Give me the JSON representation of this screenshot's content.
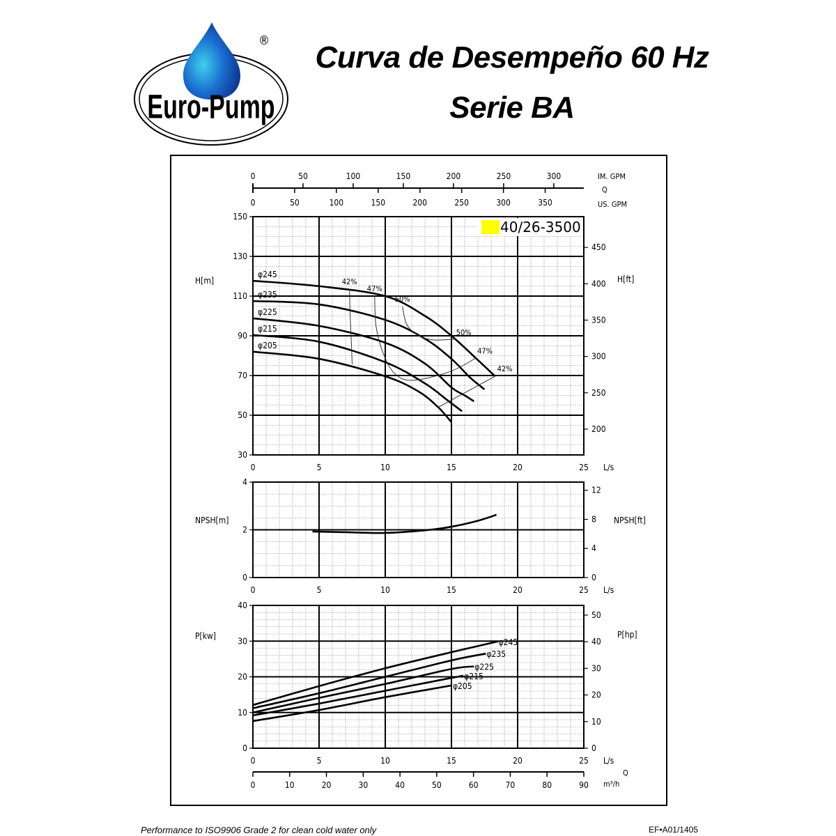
{
  "header": {
    "logo_text": "Euro-Pump",
    "registered_mark": "®",
    "title_line1": "Curva de Desempeño 60 Hz",
    "title_line2": "Serie BA"
  },
  "footer": {
    "note": "Performance to ISO9906 Grade 2 for clean cold water only",
    "code": "EF•A01/1405"
  },
  "colors": {
    "model_highlight": "#ffff00",
    "logo_drop": "#1a6fd0"
  },
  "chart_data": [
    {
      "type": "line",
      "title": "40/26-3500",
      "xlabel": "L/s",
      "ylabel": "H[m]",
      "ylabel_right": "H[ft]",
      "xlim": [
        0,
        25
      ],
      "ylim": [
        30,
        150
      ],
      "x_ticks": [
        0,
        5,
        10,
        15,
        20,
        25
      ],
      "y_ticks": [
        30,
        50,
        70,
        90,
        110,
        130,
        150
      ],
      "y_right_ticks": [
        200,
        250,
        300,
        350,
        400,
        450
      ],
      "grid": true,
      "top_axis": {
        "label": "Q",
        "im_gpm_label": "IM. GPM",
        "im_gpm_ticks": [
          0,
          50,
          100,
          150,
          200,
          250,
          300
        ],
        "us_gpm_label": "US. GPM",
        "us_gpm_ticks": [
          0,
          50,
          100,
          150,
          200,
          250,
          300,
          350
        ]
      },
      "series": [
        {
          "name": "φ245",
          "points": [
            [
              0,
              117.7
            ],
            [
              5,
              115
            ],
            [
              10,
              110
            ],
            [
              13,
              100
            ],
            [
              15,
              90
            ],
            [
              16.8,
              79
            ],
            [
              18.3,
              69.6
            ]
          ]
        },
        {
          "name": "φ235",
          "points": [
            [
              0,
              107.5
            ],
            [
              5,
              105.8
            ],
            [
              10,
              98
            ],
            [
              13,
              88.5
            ],
            [
              15,
              78.4
            ],
            [
              16.4,
              69
            ],
            [
              17.5,
              63
            ]
          ]
        },
        {
          "name": "φ225",
          "points": [
            [
              0,
              98.8
            ],
            [
              5,
              95
            ],
            [
              10,
              86.5
            ],
            [
              13,
              76
            ],
            [
              15,
              64
            ],
            [
              16,
              60
            ],
            [
              16.7,
              57
            ]
          ]
        },
        {
          "name": "φ215",
          "points": [
            [
              0,
              90.4
            ],
            [
              5,
              87
            ],
            [
              10,
              76.7
            ],
            [
              13,
              66
            ],
            [
              14.8,
              57
            ],
            [
              15.8,
              52
            ]
          ]
        },
        {
          "name": "φ205",
          "points": [
            [
              0,
              82
            ],
            [
              5,
              78.4
            ],
            [
              10,
              69.6
            ],
            [
              12.5,
              62
            ],
            [
              14,
              54
            ],
            [
              15,
              46.5
            ]
          ]
        }
      ],
      "efficiency_contours": [
        {
          "name": "42%",
          "segments": [
            [
              [
                7.3,
                113.5
              ],
              [
                7.35,
                100
              ],
              [
                7.45,
                85
              ],
              [
                7.5,
                75.6
              ]
            ],
            [
              [
                14,
                54
              ],
              [
                16.2,
                62
              ],
              [
                18.4,
                70
              ]
            ]
          ]
        },
        {
          "name": "47%",
          "segments": [
            [
              [
                9.2,
                110
              ],
              [
                9.3,
                95
              ],
              [
                9.8,
                82
              ],
              [
                10.7,
                71
              ],
              [
                12.1,
                67.6
              ],
              [
                14.9,
                72
              ],
              [
                16.9,
                79
              ]
            ]
          ]
        },
        {
          "name": "50%",
          "segments": [
            [
              [
                11.3,
                104.7
              ],
              [
                11.6,
                96
              ],
              [
                12.3,
                91
              ],
              [
                13.5,
                88
              ],
              [
                15.3,
                88.3
              ]
            ]
          ]
        }
      ]
    },
    {
      "type": "line",
      "xlabel": "L/s",
      "ylabel": "NPSH[m]",
      "ylabel_right": "NPSH[ft]",
      "xlim": [
        0,
        25
      ],
      "ylim": [
        0,
        4
      ],
      "x_ticks": [
        0,
        5,
        10,
        15,
        20,
        25
      ],
      "y_ticks": [
        0,
        2,
        4
      ],
      "y_right_ticks": [
        0,
        4,
        8,
        12
      ],
      "grid": true,
      "series": [
        {
          "points": [
            [
              4.5,
              1.93
            ],
            [
              7,
              1.9
            ],
            [
              10,
              1.87
            ],
            [
              13,
              1.98
            ],
            [
              15,
              2.13
            ],
            [
              17,
              2.38
            ],
            [
              18.4,
              2.63
            ]
          ]
        }
      ]
    },
    {
      "type": "line",
      "xlabel": "L/s",
      "ylabel": "P[kw]",
      "ylabel_right": "P[hp]",
      "xlim": [
        0,
        25
      ],
      "ylim": [
        0,
        40
      ],
      "x_ticks": [
        0,
        5,
        10,
        15,
        20,
        25
      ],
      "y_ticks": [
        0,
        10,
        20,
        30,
        40
      ],
      "y_right_ticks": [
        0,
        10,
        20,
        30,
        40,
        50
      ],
      "grid": true,
      "bottom_axis": {
        "label": "Q",
        "unit": "m³/h",
        "ticks": [
          0,
          10,
          20,
          30,
          40,
          50,
          60,
          70,
          80,
          90
        ]
      },
      "series": [
        {
          "name": "φ245",
          "points": [
            [
              0,
              12.1
            ],
            [
              5,
              17.4
            ],
            [
              10,
              22.4
            ],
            [
              15,
              26.9
            ],
            [
              18.5,
              29.9
            ]
          ]
        },
        {
          "name": "φ235",
          "points": [
            [
              0,
              11.2
            ],
            [
              5,
              15.4
            ],
            [
              10,
              20
            ],
            [
              15,
              24.6
            ],
            [
              17.6,
              26.5
            ]
          ]
        },
        {
          "name": "φ225",
          "points": [
            [
              0,
              10
            ],
            [
              5,
              14.1
            ],
            [
              10,
              18
            ],
            [
              15,
              22.2
            ],
            [
              16.7,
              22.9
            ]
          ]
        },
        {
          "name": "φ215",
          "points": [
            [
              0,
              9.2
            ],
            [
              5,
              12.5
            ],
            [
              10,
              16.1
            ],
            [
              15,
              19.7
            ],
            [
              15.9,
              20.3
            ]
          ]
        },
        {
          "name": "φ205",
          "points": [
            [
              0,
              7.6
            ],
            [
              5,
              10.7
            ],
            [
              10,
              14.3
            ],
            [
              15.05,
              17.6
            ]
          ]
        }
      ]
    }
  ]
}
